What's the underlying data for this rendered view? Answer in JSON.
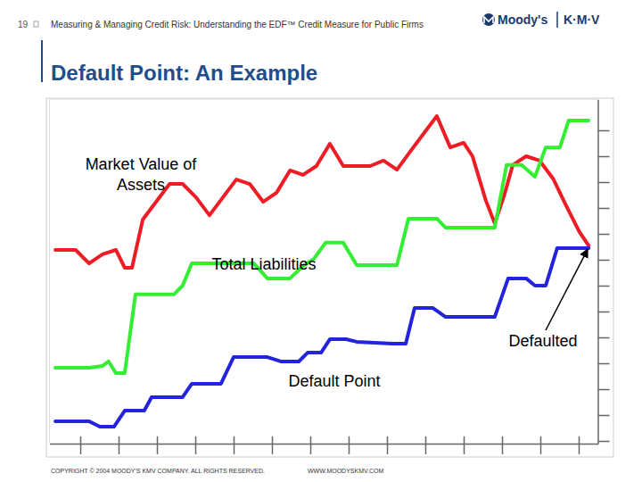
{
  "slide": {
    "number": "19",
    "header": "Measuring & Managing Credit Risk: Understanding the EDF™ Credit Measure for Public Firms",
    "logo": [
      "Moody's",
      "K·M·V"
    ],
    "footer": [
      "COPYRIGHT © 2004 MOODY'S KMV COMPANY. ALL RIGHTS RESERVED.",
      "WWW.MOODYSKMV.COM"
    ]
  },
  "chart_data": {
    "type": "line",
    "title": "Default Point: An Example",
    "xlim": [
      -0.8,
      13.5
    ],
    "xticks": [
      0,
      1,
      2,
      3,
      4,
      5,
      6,
      7,
      8,
      9,
      10,
      11,
      12,
      13
    ],
    "ylim": [
      -0.1,
      13.2
    ],
    "yticks": [
      0,
      1,
      2,
      3,
      4,
      5,
      6,
      7,
      8,
      9,
      10,
      11,
      12
    ],
    "tick_labels": false,
    "grid": false,
    "series": [
      {
        "name": "Market Value of Assets",
        "color": "#ee1c24",
        "x": [
          -0.65,
          -0.12,
          0.23,
          0.58,
          0.93,
          1.16,
          1.35,
          1.63,
          1.98,
          2.33,
          2.67,
          3.02,
          3.37,
          3.72,
          4.07,
          4.42,
          4.77,
          5.12,
          5.47,
          5.81,
          6.16,
          6.51,
          6.86,
          7.21,
          7.56,
          7.91,
          8.26,
          8.6,
          8.95,
          9.3,
          9.65,
          10.0,
          10.23,
          10.58,
          10.81,
          11.05,
          11.28,
          11.63,
          11.98,
          12.33,
          12.67,
          13.02,
          13.26
        ],
        "values": [
          7.38,
          7.38,
          6.86,
          7.21,
          7.38,
          6.69,
          6.69,
          8.55,
          9.24,
          9.93,
          9.93,
          9.41,
          8.72,
          9.41,
          10.1,
          9.93,
          9.24,
          9.59,
          10.45,
          10.28,
          10.62,
          11.48,
          10.62,
          10.62,
          10.62,
          10.83,
          10.48,
          11.17,
          11.86,
          12.55,
          11.34,
          11.52,
          11.0,
          9.28,
          8.41,
          9.45,
          10.66,
          11.0,
          10.83,
          10.14,
          9.1,
          8.07,
          7.55
        ]
      },
      {
        "name": "Total Liabilities",
        "color": "#33ee33",
        "x": [
          -0.65,
          0.23,
          0.58,
          0.74,
          0.93,
          1.16,
          1.44,
          2.44,
          2.67,
          2.91,
          4.53,
          4.88,
          5.47,
          5.81,
          6.09,
          6.4,
          6.86,
          7.21,
          8.26,
          8.56,
          9.3,
          9.53,
          10.81,
          11.12,
          11.51,
          11.86,
          12.14,
          12.51,
          12.74,
          13.26
        ],
        "values": [
          2.83,
          2.83,
          2.9,
          3.07,
          2.62,
          2.62,
          5.66,
          5.66,
          6.0,
          6.86,
          6.86,
          6.28,
          6.28,
          6.76,
          7.03,
          7.66,
          7.66,
          6.79,
          6.79,
          8.59,
          8.59,
          8.24,
          8.24,
          10.66,
          10.66,
          10.21,
          11.34,
          11.34,
          12.38,
          12.38
        ]
      },
      {
        "name": "Default Point",
        "color": "#2323dd",
        "x": [
          -0.65,
          0.23,
          0.51,
          0.88,
          1.16,
          1.67,
          1.86,
          2.67,
          2.91,
          3.67,
          4.0,
          4.88,
          5.23,
          5.7,
          5.93,
          6.28,
          6.51,
          6.93,
          7.21,
          8.14,
          8.49,
          8.72,
          9.19,
          9.53,
          10.81,
          11.16,
          11.63,
          11.86,
          12.14,
          12.44,
          13.26
        ],
        "values": [
          0.76,
          0.76,
          0.55,
          0.55,
          1.17,
          1.17,
          1.69,
          1.69,
          2.21,
          2.21,
          3.24,
          3.24,
          3.07,
          3.07,
          3.41,
          3.41,
          3.93,
          3.93,
          3.83,
          3.76,
          3.76,
          5.14,
          5.14,
          4.79,
          4.79,
          6.28,
          6.28,
          6.0,
          6.0,
          7.45,
          7.45
        ]
      }
    ],
    "annotations": [
      {
        "text": "Defaulted"
      }
    ]
  }
}
